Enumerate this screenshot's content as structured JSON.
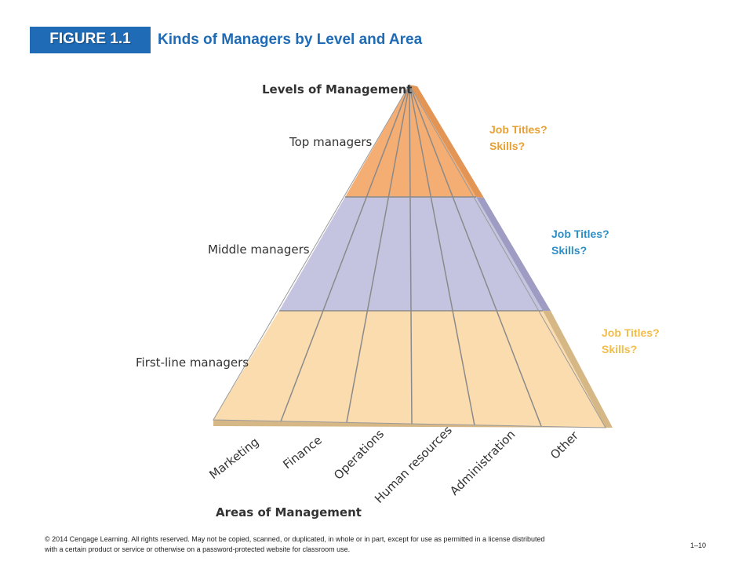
{
  "header": {
    "figure_label": "FIGURE 1.1",
    "title": "Kinds of Managers by Level and Area"
  },
  "diagram": {
    "levels_heading": "Levels of Management",
    "areas_heading": "Areas of Management",
    "levels": [
      {
        "label": "Top managers",
        "color": "#f4ad73",
        "side_color": "#e39556"
      },
      {
        "label": "Middle managers",
        "color": "#c5c4e0",
        "side_color": "#9e9cc2"
      },
      {
        "label": "First-line managers",
        "color": "#fadcaf",
        "side_color": "#d6b886"
      }
    ],
    "areas": [
      "Marketing",
      "Finance",
      "Operations",
      "Human resources",
      "Administration",
      "Other"
    ],
    "side_notes": [
      {
        "line1": "Job Titles?",
        "line2": "Skills?",
        "color": "#e8a032"
      },
      {
        "line1": "Job Titles?",
        "line2": "Skills?",
        "color": "#2e8fc6"
      },
      {
        "line1": "Job Titles?",
        "line2": "Skills?",
        "color": "#f2bd4a"
      }
    ]
  },
  "footer": {
    "copyright": "© 2014 Cengage Learning. All rights reserved. May not be copied, scanned, or duplicated, in whole or in part, except for use as permitted in a license distributed with a certain product or service or otherwise on a password-protected website for classroom use.",
    "page_number": "1–10"
  }
}
